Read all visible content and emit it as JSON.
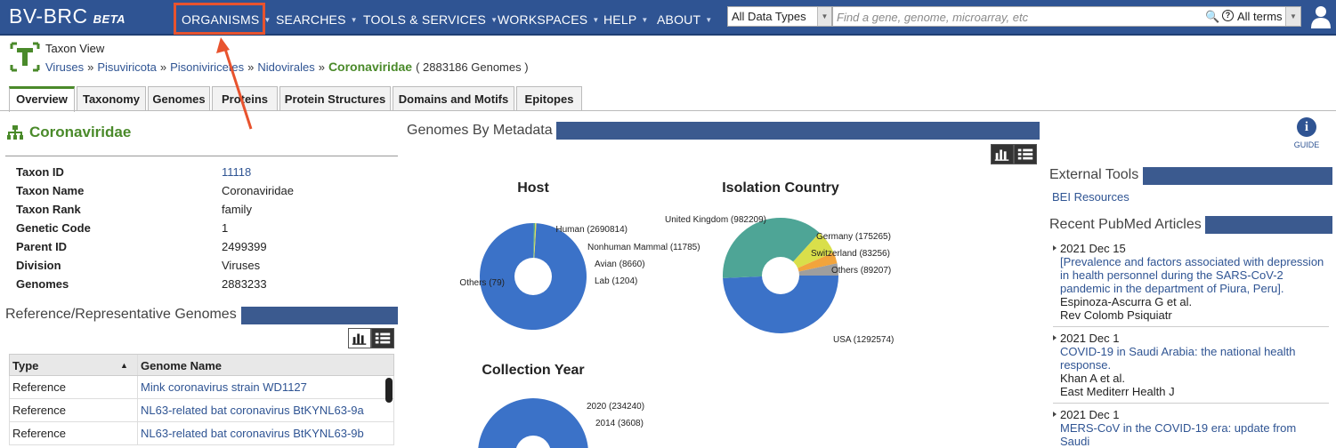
{
  "header": {
    "logo": "BV-BRC",
    "logo_tag": "BETA",
    "nav": [
      "ORGANISMS",
      "SEARCHES",
      "TOOLS & SERVICES",
      "WORKSPACES",
      "HELP",
      "ABOUT"
    ],
    "data_type": "All Data Types",
    "search_placeholder": "Find a gene, genome, microarray, etc",
    "search_scope": "All terms",
    "highlight_color": "#e8532e"
  },
  "taxon": {
    "view_label": "Taxon View",
    "breadcrumb": [
      "Viruses",
      "Pisuviricota",
      "Pisoniviricetes",
      "Nidovirales"
    ],
    "current": "Coronaviridae",
    "genome_count": "( 2883186 Genomes )"
  },
  "tabs": [
    "Overview",
    "Taxonomy",
    "Genomes",
    "Proteins",
    "Protein Structures",
    "Domains and Motifs",
    "Epitopes"
  ],
  "overview": {
    "title": "Coronaviridae",
    "properties": [
      {
        "key": "Taxon ID",
        "value": "11118",
        "link": true
      },
      {
        "key": "Taxon Name",
        "value": "Coronaviridae",
        "link": false
      },
      {
        "key": "Taxon Rank",
        "value": "family",
        "link": false
      },
      {
        "key": "Genetic Code",
        "value": "1",
        "link": false
      },
      {
        "key": "Parent ID",
        "value": "2499399",
        "link": false
      },
      {
        "key": "Division",
        "value": "Viruses",
        "link": false
      },
      {
        "key": "Genomes",
        "value": "2883233",
        "link": false
      }
    ]
  },
  "reference_genomes": {
    "title": "Reference/Representative Genomes",
    "columns": [
      "Type",
      "Genome Name"
    ],
    "rows": [
      [
        "Reference",
        "Mink coronavirus strain WD1127"
      ],
      [
        "Reference",
        "NL63-related bat coronavirus BtKYNL63-9a"
      ],
      [
        "Reference",
        "NL63-related bat coronavirus BtKYNL63-9b"
      ]
    ]
  },
  "metadata": {
    "title": "Genomes By Metadata"
  },
  "chart_data": [
    {
      "type": "pie",
      "title": "Host",
      "slices": [
        {
          "label": "Human",
          "value": 2690814,
          "color": "#3b72c8"
        },
        {
          "label": "Nonhuman Mammal",
          "value": 11785,
          "color": "#4ea596"
        },
        {
          "label": "Avian",
          "value": 8660,
          "color": "#d9df4a"
        },
        {
          "label": "Lab",
          "value": 1204,
          "color": "#f2a43c"
        },
        {
          "label": "Others",
          "value": 79,
          "color": "#9e9e9e"
        }
      ]
    },
    {
      "type": "pie",
      "title": "Isolation Country",
      "slices": [
        {
          "label": "USA",
          "value": 1292574,
          "color": "#3b72c8"
        },
        {
          "label": "United Kingdom",
          "value": 982209,
          "color": "#4ea596"
        },
        {
          "label": "Germany",
          "value": 175265,
          "color": "#d9df4a"
        },
        {
          "label": "Switzerland",
          "value": 83256,
          "color": "#f2a43c"
        },
        {
          "label": "Others",
          "value": 89207,
          "color": "#9e9e9e"
        }
      ]
    },
    {
      "type": "pie",
      "title": "Collection Year",
      "slices": [
        {
          "label": "2020",
          "value": 234240,
          "color": "#3b72c8"
        },
        {
          "label": "2014",
          "value": 3608,
          "color": "#4ea596"
        }
      ]
    }
  ],
  "right": {
    "guide_label": "GUIDE",
    "external_tools_title": "External Tools",
    "bei_link": "BEI Resources",
    "pubmed_title": "Recent PubMed Articles",
    "articles": [
      {
        "date": "2021 Dec 15",
        "title": "[Prevalence and factors associated with depression in health personnel during the SARS-CoV-2 pandemic in the department of Piura, Peru].",
        "authors": "Espinoza-Ascurra G et al.",
        "journal": "Rev Colomb Psiquiatr"
      },
      {
        "date": "2021 Dec 1",
        "title": "COVID-19 in Saudi Arabia: the national health response.",
        "authors": "Khan A et al.",
        "journal": "East Mediterr Health J"
      },
      {
        "date": "2021 Dec 1",
        "title": "MERS-CoV in the COVID-19 era: update from Saudi",
        "authors": "",
        "journal": ""
      }
    ]
  }
}
